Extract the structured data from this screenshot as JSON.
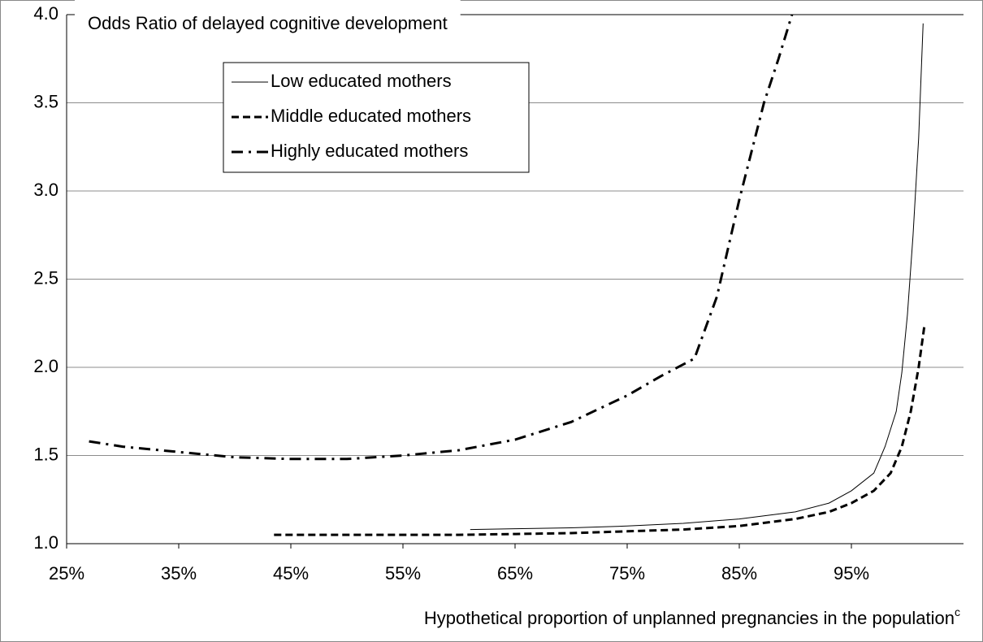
{
  "chart_data": {
    "type": "line",
    "title": "Odds Ratio of delayed cognitive development",
    "xlabel": "Hypothetical proportion of unplanned pregnancies in the population",
    "xlabel_superscript": "c",
    "xlim": [
      25,
      105
    ],
    "xticks": [
      {
        "value": 25,
        "label": "25%"
      },
      {
        "value": 35,
        "label": "35%"
      },
      {
        "value": 45,
        "label": "45%"
      },
      {
        "value": 55,
        "label": "55%"
      },
      {
        "value": 65,
        "label": "65%"
      },
      {
        "value": 75,
        "label": "75%"
      },
      {
        "value": 85,
        "label": "85%"
      },
      {
        "value": 95,
        "label": "95%"
      }
    ],
    "ylim": [
      1,
      4
    ],
    "yticks": [
      {
        "value": 1,
        "label": "1.0"
      },
      {
        "value": 1.5,
        "label": "1.5"
      },
      {
        "value": 2,
        "label": "2.0"
      },
      {
        "value": 2.5,
        "label": "2.5"
      },
      {
        "value": 3,
        "label": "3.0"
      },
      {
        "value": 3.5,
        "label": "3.5"
      },
      {
        "value": 4,
        "label": "4.0"
      }
    ],
    "grid": true,
    "legend": "upper left",
    "series": [
      {
        "name": "Low educated mothers",
        "color": "#000000",
        "dash": "solid",
        "width": 1,
        "x": [
          61,
          65,
          70,
          75,
          80,
          85,
          90,
          93,
          95,
          97,
          98,
          99,
          99.5,
          100,
          100.5,
          101,
          101.4
        ],
        "values": [
          1.08,
          1.085,
          1.09,
          1.1,
          1.115,
          1.14,
          1.18,
          1.23,
          1.3,
          1.4,
          1.55,
          1.75,
          1.97,
          2.3,
          2.75,
          3.3,
          3.95
        ]
      },
      {
        "name": "Middle educated mothers",
        "color": "#000000",
        "dash": "dash",
        "width": 3,
        "x": [
          43.5,
          50,
          55,
          60,
          65,
          70,
          75,
          80,
          85,
          90,
          93,
          95,
          97,
          98.5,
          99.5,
          100.3,
          101,
          101.5
        ],
        "values": [
          1.05,
          1.05,
          1.05,
          1.05,
          1.055,
          1.06,
          1.07,
          1.08,
          1.1,
          1.14,
          1.18,
          1.23,
          1.3,
          1.4,
          1.55,
          1.75,
          2.0,
          2.23
        ]
      },
      {
        "name": "Highly educated mothers",
        "color": "#000000",
        "dash": "dashdot",
        "width": 3,
        "x": [
          27,
          30,
          35,
          40,
          45,
          50,
          55,
          60,
          65,
          70,
          75,
          78,
          81,
          83,
          85,
          86,
          87.2,
          88.5,
          89.7
        ],
        "values": [
          1.58,
          1.55,
          1.52,
          1.49,
          1.48,
          1.48,
          1.5,
          1.53,
          1.59,
          1.69,
          1.84,
          1.95,
          2.05,
          2.4,
          2.95,
          3.2,
          3.5,
          3.75,
          4.0
        ]
      }
    ]
  }
}
